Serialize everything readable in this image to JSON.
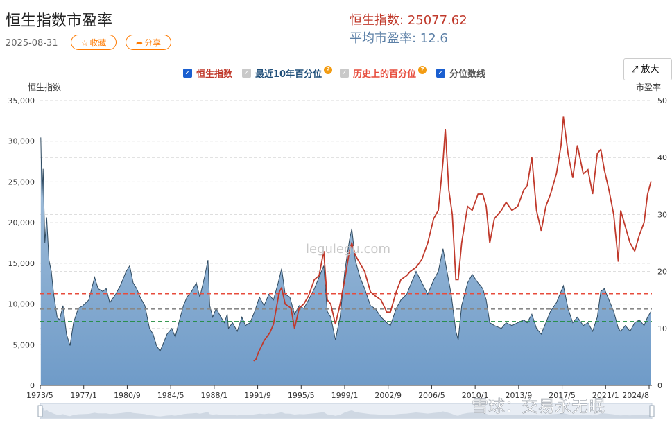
{
  "header": {
    "title": "恒生指数市盈率",
    "date": "2025-08-31",
    "collect_label": "收藏",
    "collect_icon": "star-icon",
    "share_label": "分享",
    "share_icon": "share-arrow-icon",
    "hsi_text": "恒生指数: 25077.62",
    "pe_text": "平均市盈率:  12.6"
  },
  "legend": [
    {
      "label": "恒生指数",
      "checked": true,
      "color": "#c0392b",
      "help": false
    },
    {
      "label": "最近10年百分位",
      "checked": false,
      "color": "#1f4e79",
      "help": true
    },
    {
      "label": "历史上的百分位",
      "checked": false,
      "color": "#e74c3c",
      "help": true
    },
    {
      "label": "分位数线",
      "checked": true,
      "color": "#555555",
      "help": false
    }
  ],
  "zoom_button": {
    "label": "放大",
    "icon": "expand-icon"
  },
  "watermark": "legulegu.com",
  "footer_watermark": "雪球：交易永无眠",
  "chart_data": {
    "type": "area",
    "left_axis": {
      "title": "恒生指数",
      "ticks": [
        "35,000",
        "30,000",
        "25,000",
        "20,000",
        "15,000",
        "10,000",
        "5,000",
        "0"
      ],
      "ylim": [
        0,
        35000
      ]
    },
    "right_axis": {
      "title": "市盈率",
      "ticks": [
        "50",
        "40",
        "30",
        "20",
        "10",
        "0"
      ],
      "ylim": [
        0,
        50
      ]
    },
    "x_ticks": [
      "1973/5",
      "1977/1",
      "1980/9",
      "1984/5",
      "1988/1",
      "1991/9",
      "1995/5",
      "1999/1",
      "2002/9",
      "2006/5",
      "2010/1",
      "2013/9",
      "2017/5",
      "2021/1",
      "2024/8"
    ],
    "xlim": [
      1973.35,
      2025.67
    ],
    "colors": {
      "pe_fill_top": "#aac4dd",
      "pe_fill_bottom": "#6f9bc8",
      "pe_line": "#2f4a60",
      "hsi_line": "#c0392b",
      "q_high": "#e74c3c",
      "q_mid": "#888888",
      "q_low": "#1e8b3c"
    },
    "quantile_lines_pe": [
      16.1,
      13.4,
      11.2
    ],
    "pe_series": {
      "name": "市盈率",
      "points": [
        [
          1973.4,
          43.5
        ],
        [
          1973.5,
          33
        ],
        [
          1973.6,
          38
        ],
        [
          1973.75,
          25
        ],
        [
          1973.9,
          29.5
        ],
        [
          1974.1,
          22
        ],
        [
          1974.3,
          20
        ],
        [
          1974.5,
          16
        ],
        [
          1974.8,
          12
        ],
        [
          1975.0,
          11.5
        ],
        [
          1975.3,
          14
        ],
        [
          1975.6,
          9
        ],
        [
          1975.9,
          7
        ],
        [
          1976.2,
          11
        ],
        [
          1976.6,
          13.5
        ],
        [
          1977.0,
          14
        ],
        [
          1977.5,
          15
        ],
        [
          1978.0,
          19
        ],
        [
          1978.3,
          17
        ],
        [
          1978.7,
          16.5
        ],
        [
          1979.0,
          17
        ],
        [
          1979.3,
          14.5
        ],
        [
          1979.8,
          16
        ],
        [
          1980.2,
          17.5
        ],
        [
          1980.7,
          20
        ],
        [
          1981.0,
          21
        ],
        [
          1981.3,
          18
        ],
        [
          1981.6,
          17
        ],
        [
          1981.9,
          15.5
        ],
        [
          1982.3,
          14
        ],
        [
          1982.7,
          10
        ],
        [
          1983.0,
          9
        ],
        [
          1983.3,
          7
        ],
        [
          1983.6,
          6
        ],
        [
          1983.8,
          7
        ],
        [
          1984.2,
          9
        ],
        [
          1984.6,
          10
        ],
        [
          1984.9,
          8.5
        ],
        [
          1985.2,
          11
        ],
        [
          1985.6,
          14
        ],
        [
          1985.9,
          15.5
        ],
        [
          1986.3,
          16.5
        ],
        [
          1986.7,
          18
        ],
        [
          1987.0,
          15.5
        ],
        [
          1987.4,
          19
        ],
        [
          1987.7,
          22
        ],
        [
          1987.85,
          14
        ],
        [
          1988.1,
          12
        ],
        [
          1988.4,
          13.5
        ],
        [
          1988.8,
          12
        ],
        [
          1989.1,
          11
        ],
        [
          1989.35,
          12.5
        ],
        [
          1989.45,
          10
        ],
        [
          1989.8,
          11
        ],
        [
          1990.2,
          9.5
        ],
        [
          1990.6,
          12
        ],
        [
          1990.9,
          10.5
        ],
        [
          1991.3,
          11
        ],
        [
          1991.7,
          13
        ],
        [
          1992.1,
          15.5
        ],
        [
          1992.5,
          14
        ],
        [
          1992.9,
          16
        ],
        [
          1993.3,
          15
        ],
        [
          1993.7,
          18
        ],
        [
          1994.0,
          20.5
        ],
        [
          1994.3,
          16
        ],
        [
          1994.7,
          15.5
        ],
        [
          1995.1,
          12.5
        ],
        [
          1995.5,
          14
        ],
        [
          1995.9,
          13.5
        ],
        [
          1996.3,
          15
        ],
        [
          1996.8,
          17
        ],
        [
          1997.2,
          19
        ],
        [
          1997.6,
          21
        ],
        [
          1997.9,
          13
        ],
        [
          1998.2,
          12
        ],
        [
          1998.6,
          8
        ],
        [
          1999.0,
          12
        ],
        [
          1999.4,
          20
        ],
        [
          1999.8,
          25.5
        ],
        [
          2000.0,
          27.5
        ],
        [
          2000.3,
          22
        ],
        [
          2000.7,
          19
        ],
        [
          2001.1,
          17
        ],
        [
          2001.6,
          14
        ],
        [
          2002.0,
          13.5
        ],
        [
          2002.5,
          12
        ],
        [
          2003.0,
          11
        ],
        [
          2003.3,
          10.5
        ],
        [
          2003.8,
          13.5
        ],
        [
          2004.2,
          15
        ],
        [
          2004.7,
          16
        ],
        [
          2005.0,
          17.5
        ],
        [
          2005.5,
          20
        ],
        [
          2006.0,
          18
        ],
        [
          2006.5,
          16
        ],
        [
          2007.0,
          18.5
        ],
        [
          2007.4,
          20
        ],
        [
          2007.8,
          24
        ],
        [
          2008.1,
          20.5
        ],
        [
          2008.5,
          16
        ],
        [
          2008.9,
          9.5
        ],
        [
          2009.1,
          8
        ],
        [
          2009.4,
          14
        ],
        [
          2009.9,
          18
        ],
        [
          2010.3,
          19.5
        ],
        [
          2010.8,
          18
        ],
        [
          2011.2,
          17
        ],
        [
          2011.5,
          15
        ],
        [
          2011.8,
          11
        ],
        [
          2012.2,
          10.5
        ],
        [
          2012.8,
          10
        ],
        [
          2013.2,
          11
        ],
        [
          2013.7,
          10.5
        ],
        [
          2014.2,
          11
        ],
        [
          2014.7,
          11.5
        ],
        [
          2015.0,
          11
        ],
        [
          2015.4,
          12.5
        ],
        [
          2015.8,
          10
        ],
        [
          2016.2,
          9
        ],
        [
          2016.6,
          11
        ],
        [
          2017.0,
          13
        ],
        [
          2017.5,
          14.5
        ],
        [
          2017.9,
          16.5
        ],
        [
          2018.1,
          17.5
        ],
        [
          2018.5,
          13.5
        ],
        [
          2018.9,
          11
        ],
        [
          2019.3,
          12
        ],
        [
          2019.8,
          10.5
        ],
        [
          2020.2,
          11
        ],
        [
          2020.6,
          9.5
        ],
        [
          2021.0,
          12
        ],
        [
          2021.3,
          16.5
        ],
        [
          2021.6,
          17
        ],
        [
          2022.0,
          15
        ],
        [
          2022.4,
          13
        ],
        [
          2022.8,
          10
        ],
        [
          2023.0,
          9.5
        ],
        [
          2023.4,
          10.5
        ],
        [
          2023.8,
          9.5
        ],
        [
          2024.2,
          11
        ],
        [
          2024.6,
          11.5
        ],
        [
          2025.0,
          10.5
        ],
        [
          2025.3,
          12
        ],
        [
          2025.6,
          13
        ]
      ]
    },
    "hsi_series": {
      "name": "恒生指数",
      "points": [
        [
          1991.6,
          3000
        ],
        [
          1991.8,
          3200
        ],
        [
          1992.0,
          4000
        ],
        [
          1992.5,
          5500
        ],
        [
          1993.0,
          6500
        ],
        [
          1993.3,
          7500
        ],
        [
          1993.8,
          11500
        ],
        [
          1994.0,
          12000
        ],
        [
          1994.3,
          10000
        ],
        [
          1994.8,
          9500
        ],
        [
          1995.1,
          7000
        ],
        [
          1995.5,
          9500
        ],
        [
          1995.9,
          10000
        ],
        [
          1996.3,
          11000
        ],
        [
          1996.8,
          13000
        ],
        [
          1997.2,
          13500
        ],
        [
          1997.6,
          16500
        ],
        [
          1997.9,
          10500
        ],
        [
          1998.2,
          10000
        ],
        [
          1998.6,
          7500
        ],
        [
          1999.0,
          10000
        ],
        [
          1999.4,
          13000
        ],
        [
          1999.8,
          16500
        ],
        [
          2000.0,
          17500
        ],
        [
          2000.3,
          16000
        ],
        [
          2000.7,
          15000
        ],
        [
          2001.1,
          14000
        ],
        [
          2001.6,
          11500
        ],
        [
          2002.0,
          11000
        ],
        [
          2002.5,
          10500
        ],
        [
          2003.0,
          9000
        ],
        [
          2003.3,
          9000
        ],
        [
          2003.8,
          11500
        ],
        [
          2004.2,
          13000
        ],
        [
          2004.7,
          13500
        ],
        [
          2005.0,
          14000
        ],
        [
          2005.5,
          14500
        ],
        [
          2006.0,
          15500
        ],
        [
          2006.5,
          17500
        ],
        [
          2007.0,
          20500
        ],
        [
          2007.4,
          21500
        ],
        [
          2007.8,
          27500
        ],
        [
          2008.0,
          31500
        ],
        [
          2008.3,
          24000
        ],
        [
          2008.6,
          21000
        ],
        [
          2008.9,
          13000
        ],
        [
          2009.1,
          13000
        ],
        [
          2009.4,
          17500
        ],
        [
          2009.9,
          22000
        ],
        [
          2010.3,
          21500
        ],
        [
          2010.8,
          23500
        ],
        [
          2011.2,
          23500
        ],
        [
          2011.5,
          22000
        ],
        [
          2011.8,
          17500
        ],
        [
          2012.2,
          20500
        ],
        [
          2012.8,
          21500
        ],
        [
          2013.2,
          22500
        ],
        [
          2013.7,
          21500
        ],
        [
          2014.2,
          22000
        ],
        [
          2014.7,
          24000
        ],
        [
          2015.0,
          24500
        ],
        [
          2015.4,
          28000
        ],
        [
          2015.8,
          21500
        ],
        [
          2016.2,
          19000
        ],
        [
          2016.6,
          22000
        ],
        [
          2017.0,
          23500
        ],
        [
          2017.5,
          26000
        ],
        [
          2017.9,
          29500
        ],
        [
          2018.1,
          33000
        ],
        [
          2018.5,
          28500
        ],
        [
          2018.9,
          25500
        ],
        [
          2019.3,
          29500
        ],
        [
          2019.8,
          26000
        ],
        [
          2020.2,
          26500
        ],
        [
          2020.6,
          23500
        ],
        [
          2021.0,
          28500
        ],
        [
          2021.3,
          29000
        ],
        [
          2021.6,
          26500
        ],
        [
          2022.0,
          24000
        ],
        [
          2022.4,
          21000
        ],
        [
          2022.8,
          15200
        ],
        [
          2023.0,
          21500
        ],
        [
          2023.4,
          19500
        ],
        [
          2023.8,
          17500
        ],
        [
          2024.2,
          16500
        ],
        [
          2024.6,
          18500
        ],
        [
          2025.0,
          20000
        ],
        [
          2025.3,
          23500
        ],
        [
          2025.6,
          25077.62
        ]
      ]
    }
  }
}
